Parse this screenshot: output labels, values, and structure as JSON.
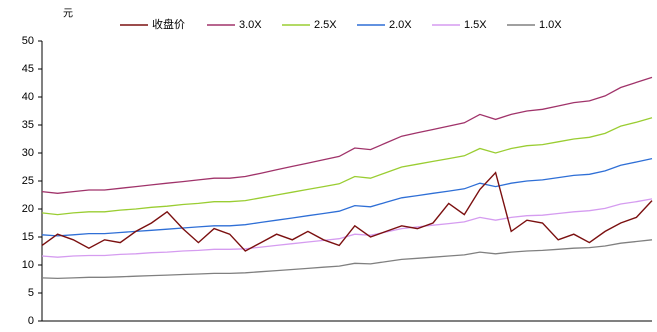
{
  "chart_data": {
    "type": "line",
    "unit_label": "元",
    "categories": [
      null,
      null,
      null,
      null,
      null,
      null,
      null,
      null,
      null,
      null,
      null,
      null,
      null,
      null,
      null,
      null,
      null,
      null,
      null,
      null,
      null,
      null,
      null,
      null,
      null,
      null,
      null,
      null,
      null,
      null,
      null,
      null,
      null,
      null,
      null,
      null,
      null,
      null,
      null,
      null
    ],
    "ylim": [
      0,
      50
    ],
    "yticks": [
      0,
      5,
      10,
      15,
      20,
      25,
      30,
      35,
      40,
      45,
      50
    ],
    "legend": "top",
    "series": [
      {
        "name": "收盘价",
        "color": "#7b1010",
        "values": [
          13.5,
          15.5,
          14.5,
          13.0,
          14.5,
          14.0,
          16.0,
          17.5,
          19.5,
          16.5,
          14.0,
          16.5,
          15.5,
          12.5,
          14.0,
          15.5,
          14.5,
          16.0,
          14.5,
          13.5,
          17.0,
          15.0,
          16.0,
          17.0,
          16.5,
          17.5,
          21.0,
          19.0,
          23.5,
          26.5,
          16.0,
          18.0,
          17.5,
          14.5,
          15.5,
          14.0,
          16.0,
          17.5,
          18.5,
          21.5
        ]
      },
      {
        "name": "3.0X",
        "color": "#a0336a",
        "values": [
          23.1,
          22.8,
          23.1,
          23.4,
          23.4,
          23.7,
          24.0,
          24.3,
          24.6,
          24.9,
          25.2,
          25.5,
          25.5,
          25.8,
          26.4,
          27.0,
          27.6,
          28.2,
          28.8,
          29.4,
          30.9,
          30.6,
          31.8,
          33.0,
          33.6,
          34.2,
          34.8,
          35.4,
          36.9,
          36.0,
          36.9,
          37.5,
          37.8,
          38.4,
          39.0,
          39.3,
          40.2,
          41.7,
          42.6,
          43.5
        ]
      },
      {
        "name": "2.5X",
        "color": "#9acd32",
        "values": [
          19.3,
          19.0,
          19.3,
          19.5,
          19.5,
          19.8,
          20.0,
          20.3,
          20.5,
          20.8,
          21.0,
          21.3,
          21.3,
          21.5,
          22.0,
          22.5,
          23.0,
          23.5,
          24.0,
          24.5,
          25.8,
          25.5,
          26.5,
          27.5,
          28.0,
          28.5,
          29.0,
          29.5,
          30.8,
          30.0,
          30.8,
          31.3,
          31.5,
          32.0,
          32.5,
          32.8,
          33.5,
          34.8,
          35.5,
          36.3
        ]
      },
      {
        "name": "2.0X",
        "color": "#2f6fd6",
        "values": [
          15.4,
          15.2,
          15.4,
          15.6,
          15.6,
          15.8,
          16.0,
          16.2,
          16.4,
          16.6,
          16.8,
          17.0,
          17.0,
          17.2,
          17.6,
          18.0,
          18.4,
          18.8,
          19.2,
          19.6,
          20.6,
          20.4,
          21.2,
          22.0,
          22.4,
          22.8,
          23.2,
          23.6,
          24.6,
          24.0,
          24.6,
          25.0,
          25.2,
          25.6,
          26.0,
          26.2,
          26.8,
          27.8,
          28.4,
          29.0
        ]
      },
      {
        "name": "1.5X",
        "color": "#d59cf0",
        "values": [
          11.6,
          11.4,
          11.6,
          11.7,
          11.7,
          11.9,
          12.0,
          12.2,
          12.3,
          12.5,
          12.6,
          12.8,
          12.8,
          12.9,
          13.2,
          13.5,
          13.8,
          14.1,
          14.4,
          14.7,
          15.5,
          15.3,
          15.9,
          16.5,
          16.8,
          17.1,
          17.4,
          17.7,
          18.5,
          18.0,
          18.5,
          18.8,
          18.9,
          19.2,
          19.5,
          19.7,
          20.1,
          20.9,
          21.3,
          21.8
        ]
      },
      {
        "name": "1.0X",
        "color": "#808080",
        "values": [
          7.7,
          7.6,
          7.7,
          7.8,
          7.8,
          7.9,
          8.0,
          8.1,
          8.2,
          8.3,
          8.4,
          8.5,
          8.5,
          8.6,
          8.8,
          9.0,
          9.2,
          9.4,
          9.6,
          9.8,
          10.3,
          10.2,
          10.6,
          11.0,
          11.2,
          11.4,
          11.6,
          11.8,
          12.3,
          12.0,
          12.3,
          12.5,
          12.6,
          12.8,
          13.0,
          13.1,
          13.4,
          13.9,
          14.2,
          14.5
        ]
      }
    ]
  }
}
